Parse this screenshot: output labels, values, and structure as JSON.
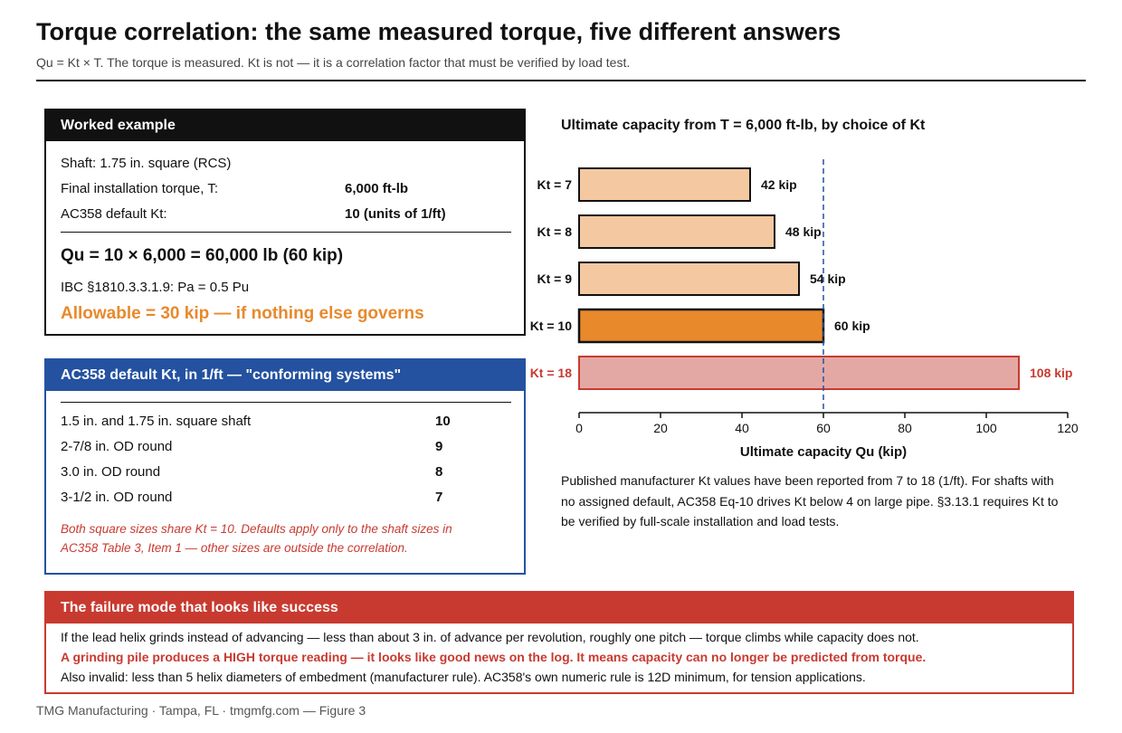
{
  "header": {
    "title": "Torque correlation: the same measured torque, five different answers",
    "subtitle": "Qu = Kt × T. The torque is measured. Kt is not — it is a correlation factor that must be verified by load test."
  },
  "worked": {
    "heading": "Worked example",
    "rows": [
      {
        "label": "Shaft: 1.75 in. square (RCS)",
        "value": ""
      },
      {
        "label": "Final installation torque, T:",
        "value": "6,000 ft-lb"
      },
      {
        "label": "AC358 default Kt:",
        "value": "10 (units of 1/ft)"
      }
    ],
    "formula": "Qu = 10 × 6,000 = 60,000 lb (60 kip)",
    "ibc": "IBC §1810.3.3.1.9: Pa = 0.5 Pu",
    "allowable": "Allowable = 30 kip — if nothing else governs"
  },
  "defaults": {
    "heading": "AC358 default Kt, in 1/ft — \"conforming systems\"",
    "rows": [
      {
        "label": "1.5 in. and 1.75 in. square shaft",
        "value": "10"
      },
      {
        "label": "2-7/8 in. OD round",
        "value": "9"
      },
      {
        "label": "3.0 in. OD round",
        "value": "8"
      },
      {
        "label": "3-1/2 in. OD round",
        "value": "7"
      }
    ],
    "note": "Both square sizes share Kt = 10. Defaults apply only to the shaft sizes in AC358 Table 3, Item 1 — other sizes are outside the correlation."
  },
  "chart_data": {
    "type": "bar",
    "orientation": "horizontal",
    "title": "Ultimate capacity from T = 6,000 ft-lb, by choice of Kt",
    "xlabel": "Ultimate capacity Qu (kip)",
    "ylabel": "",
    "xlim": [
      0,
      120
    ],
    "xticks": [
      0,
      20,
      40,
      60,
      80,
      100,
      120
    ],
    "categories": [
      "Kt = 7",
      "Kt = 8",
      "Kt = 9",
      "Kt = 10",
      "Kt = 18"
    ],
    "values": [
      42,
      48,
      54,
      60,
      108
    ],
    "data_labels": [
      "42 kip",
      "48 kip",
      "54 kip",
      "60 kip",
      "108 kip"
    ],
    "reference_line": 60,
    "colors": {
      "default_fill": "#f4c8a0",
      "default_stroke": "#111111",
      "highlight_fill": "#e8892c",
      "highlight_index": 3,
      "outlier_fill": "#e4a8a4",
      "outlier_stroke": "#c83a30",
      "outlier_index": 4,
      "reference_line": "#2452a0"
    },
    "grid": false
  },
  "chart_note": "Published manufacturer Kt values have been reported from 7 to 18 (1/ft). For shafts with no assigned default, AC358 Eq-10 drives Kt below 4 on large pipe. §3.13.1 requires Kt to be verified by full-scale installation and load tests.",
  "failure": {
    "heading": "The failure mode that looks like success",
    "line1": "If the lead helix grinds instead of advancing — less than about 3 in. of advance per revolution, roughly one pitch — torque climbs while capacity does not.",
    "line2": "A grinding pile produces a HIGH torque reading — it looks like good news on the log. It means capacity can no longer be predicted from torque.",
    "line3": "Also invalid: less than 5 helix diameters of embedment (manufacturer rule). AC358's own numeric rule is 12D minimum, for tension applications."
  },
  "footer": "TMG Manufacturing · Tampa, FL · tmgmfg.com — Figure 3"
}
